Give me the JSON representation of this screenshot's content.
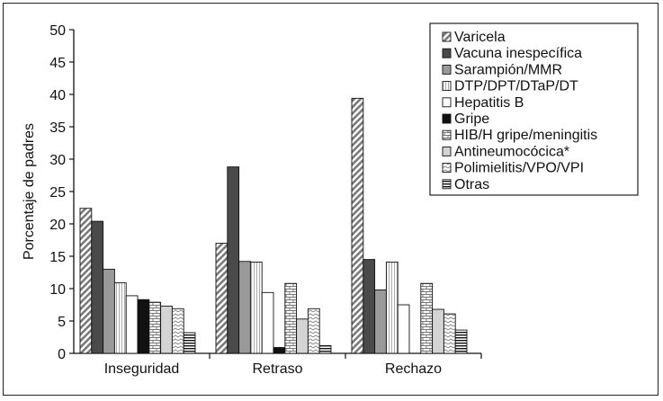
{
  "chart_data": {
    "type": "bar",
    "title": "",
    "xlabel": "",
    "ylabel": "Porcentaje de padres",
    "ylim": [
      0,
      50
    ],
    "yticks": [
      0,
      5,
      10,
      15,
      20,
      25,
      30,
      35,
      40,
      45,
      50
    ],
    "grid": false,
    "legend_position": "top-right",
    "categories": [
      "Inseguridad",
      "Retraso",
      "Rechazo"
    ],
    "series": [
      {
        "name": "Varicela",
        "values": [
          22.4,
          17.0,
          39.4
        ],
        "pattern": "diag",
        "color": "#9a9a9a"
      },
      {
        "name": "Vacuna inespecífica",
        "values": [
          20.4,
          28.8,
          14.5
        ],
        "pattern": "solid",
        "color": "#4a4a4a"
      },
      {
        "name": "Sarampión/MMR",
        "values": [
          13.0,
          14.2,
          9.8
        ],
        "pattern": "solid",
        "color": "#9a9a9a"
      },
      {
        "name": "DTP/DPT/DTaP/DT",
        "values": [
          10.9,
          14.1,
          14.1
        ],
        "pattern": "vlines",
        "color": "#dddddd"
      },
      {
        "name": "Hepatitis B",
        "values": [
          8.9,
          9.4,
          7.5
        ],
        "pattern": "solid",
        "color": "#ffffff"
      },
      {
        "name": "Gripe",
        "values": [
          8.3,
          0.9,
          0.0
        ],
        "pattern": "solid",
        "color": "#111111"
      },
      {
        "name": "HIB/H gripe/meningitis",
        "values": [
          7.9,
          10.8,
          10.8
        ],
        "pattern": "bricks",
        "color": "#cfcfcf"
      },
      {
        "name": "Antineumocócica*",
        "values": [
          7.3,
          5.3,
          6.8
        ],
        "pattern": "solid",
        "color": "#d4d4d4"
      },
      {
        "name": "Polimielitis/VPO/VPI",
        "values": [
          6.9,
          6.9,
          6.1
        ],
        "pattern": "zigzag",
        "color": "#cfcfcf"
      },
      {
        "name": "Otras",
        "values": [
          3.2,
          1.2,
          3.6
        ],
        "pattern": "hlines",
        "color": "#111111"
      }
    ]
  }
}
